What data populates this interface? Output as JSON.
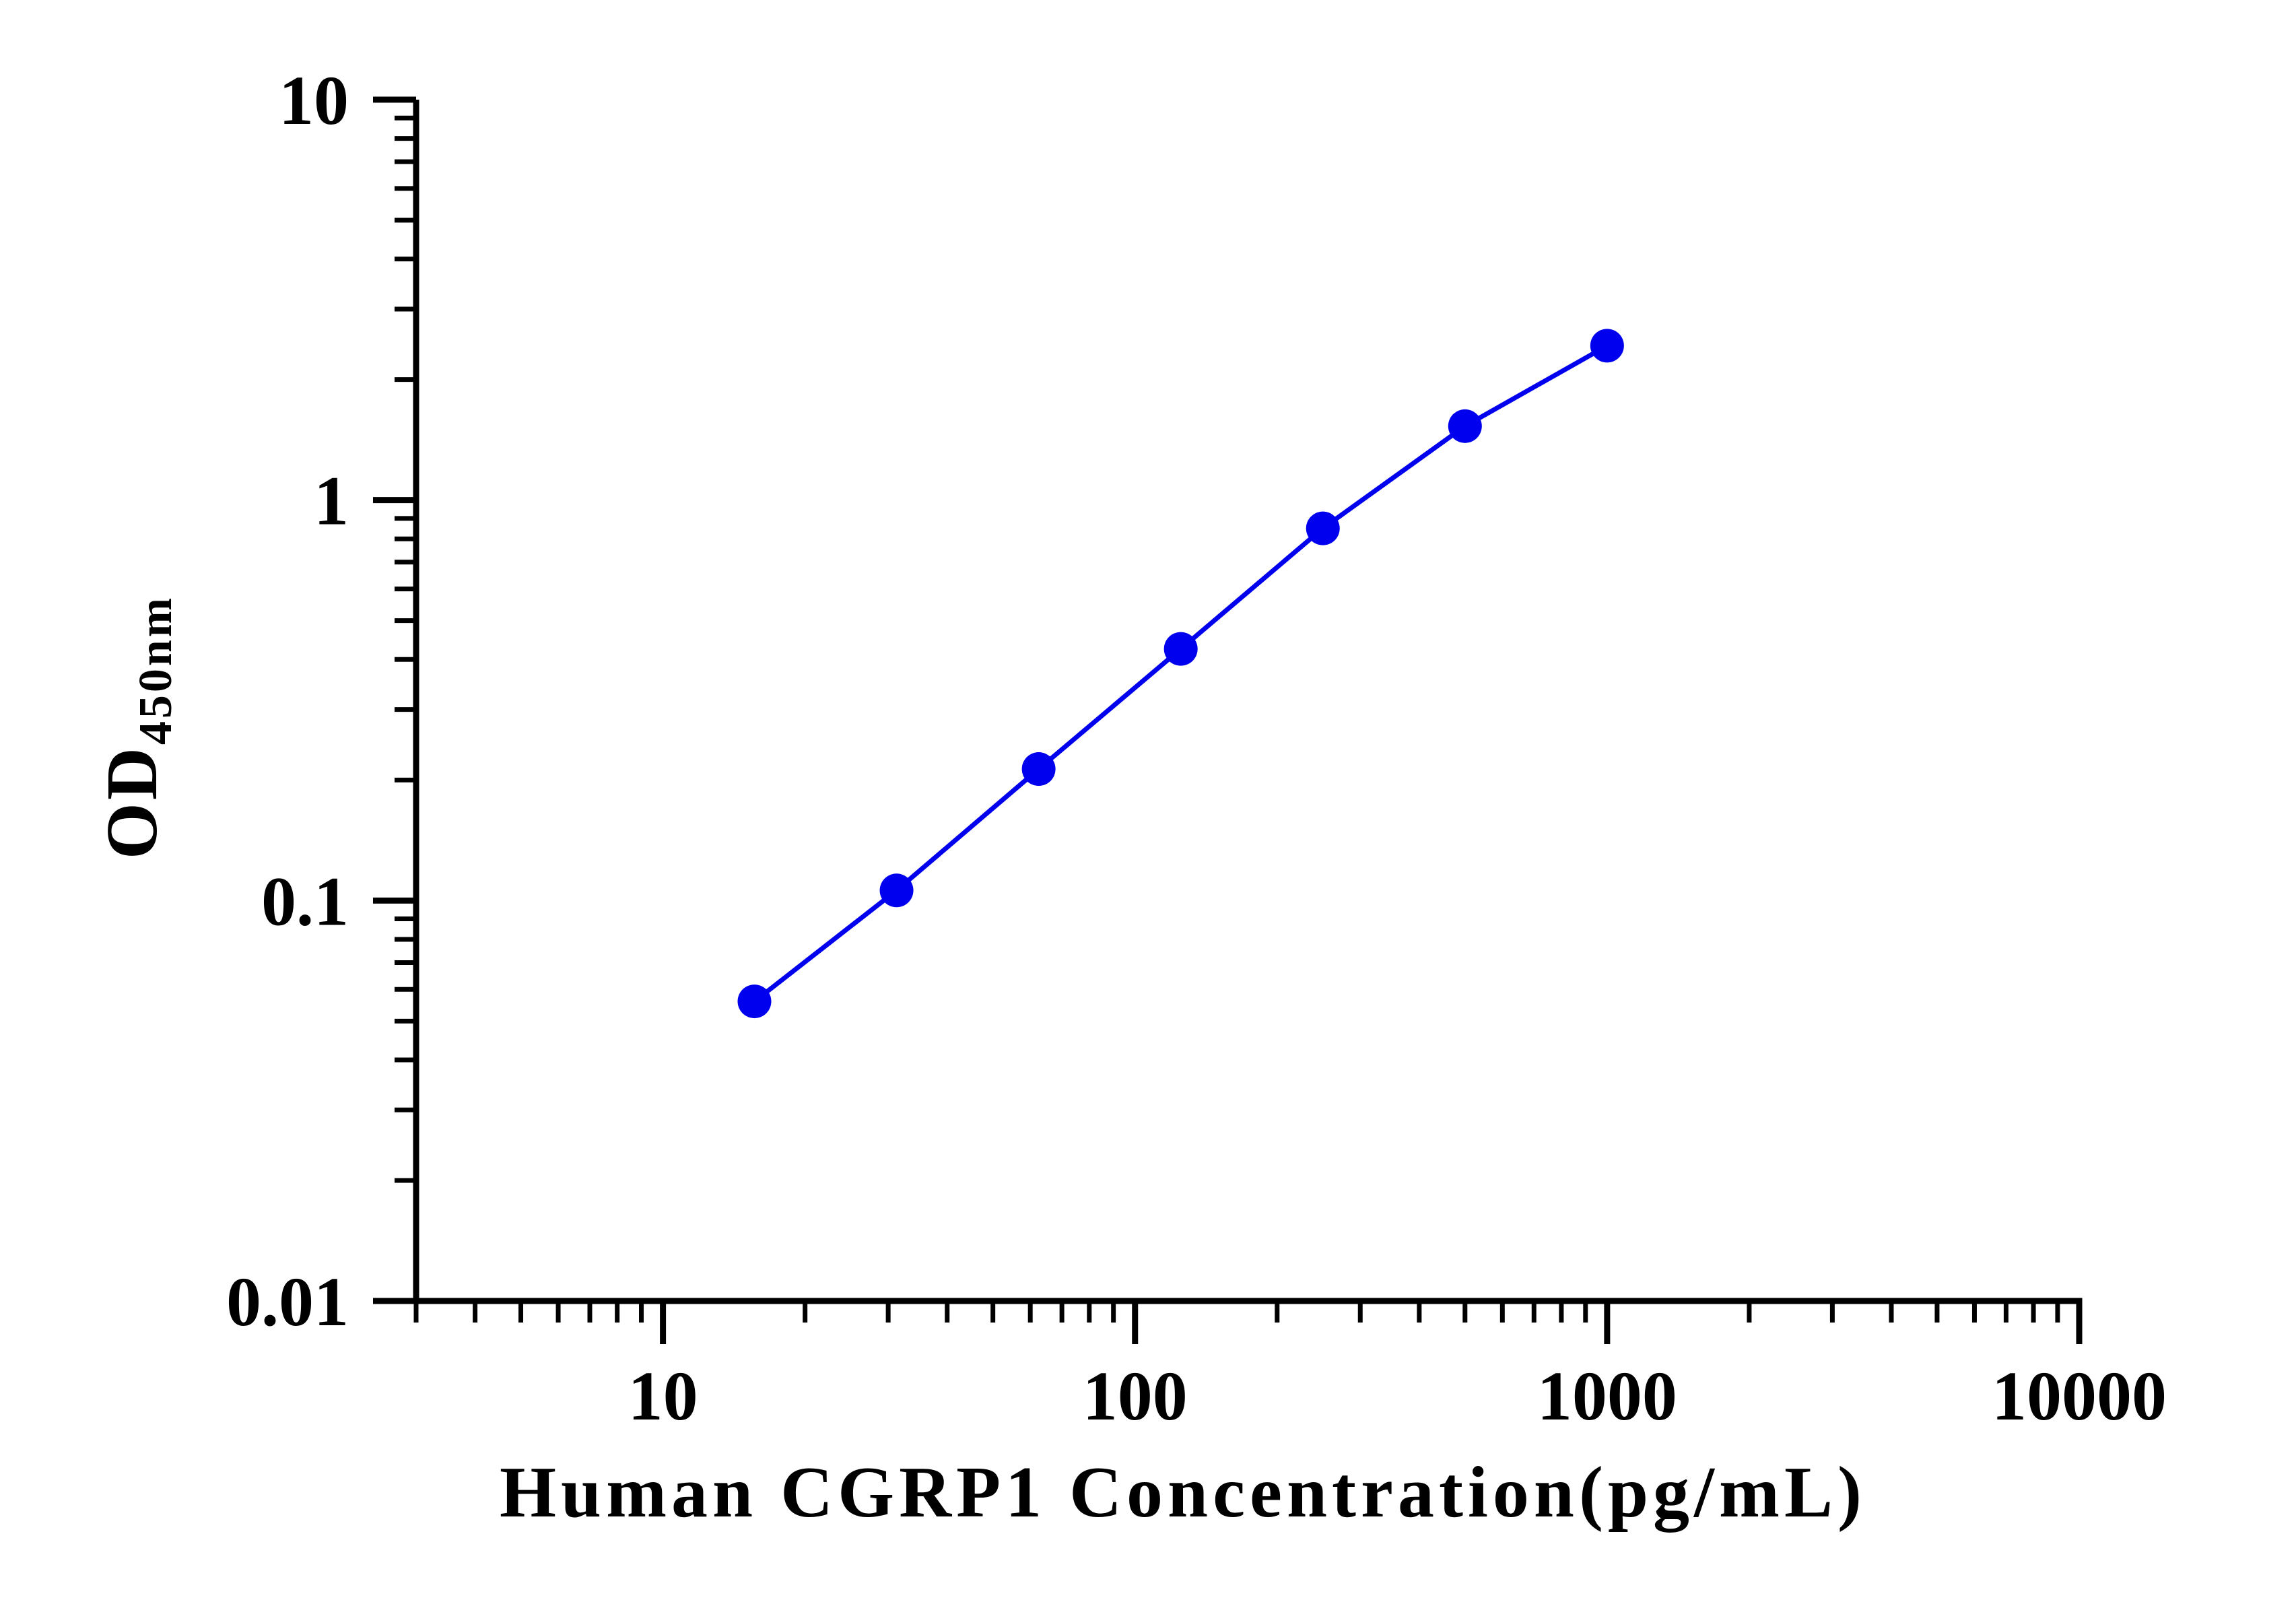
{
  "chart_data": {
    "type": "line",
    "title": "",
    "xlabel": "Human CGRP1 Concentration(pg/mL)",
    "ylabel": {
      "main": "OD",
      "subscript": "450nm"
    },
    "x_scale": "log",
    "y_scale": "log",
    "xlim": [
      3,
      10000
    ],
    "ylim": [
      0.01,
      10
    ],
    "x_ticks": [
      "10",
      "100",
      "1000",
      "10000"
    ],
    "y_ticks": [
      "0.01",
      "0.1",
      "1",
      "10"
    ],
    "grid": false,
    "legend": "none",
    "series": [
      {
        "color": "#0000ee",
        "x": [
          15.625,
          31.25,
          62.5,
          125,
          250,
          500,
          1000
        ],
        "y": [
          0.056,
          0.106,
          0.213,
          0.425,
          0.85,
          1.53,
          2.43
        ]
      }
    ]
  }
}
